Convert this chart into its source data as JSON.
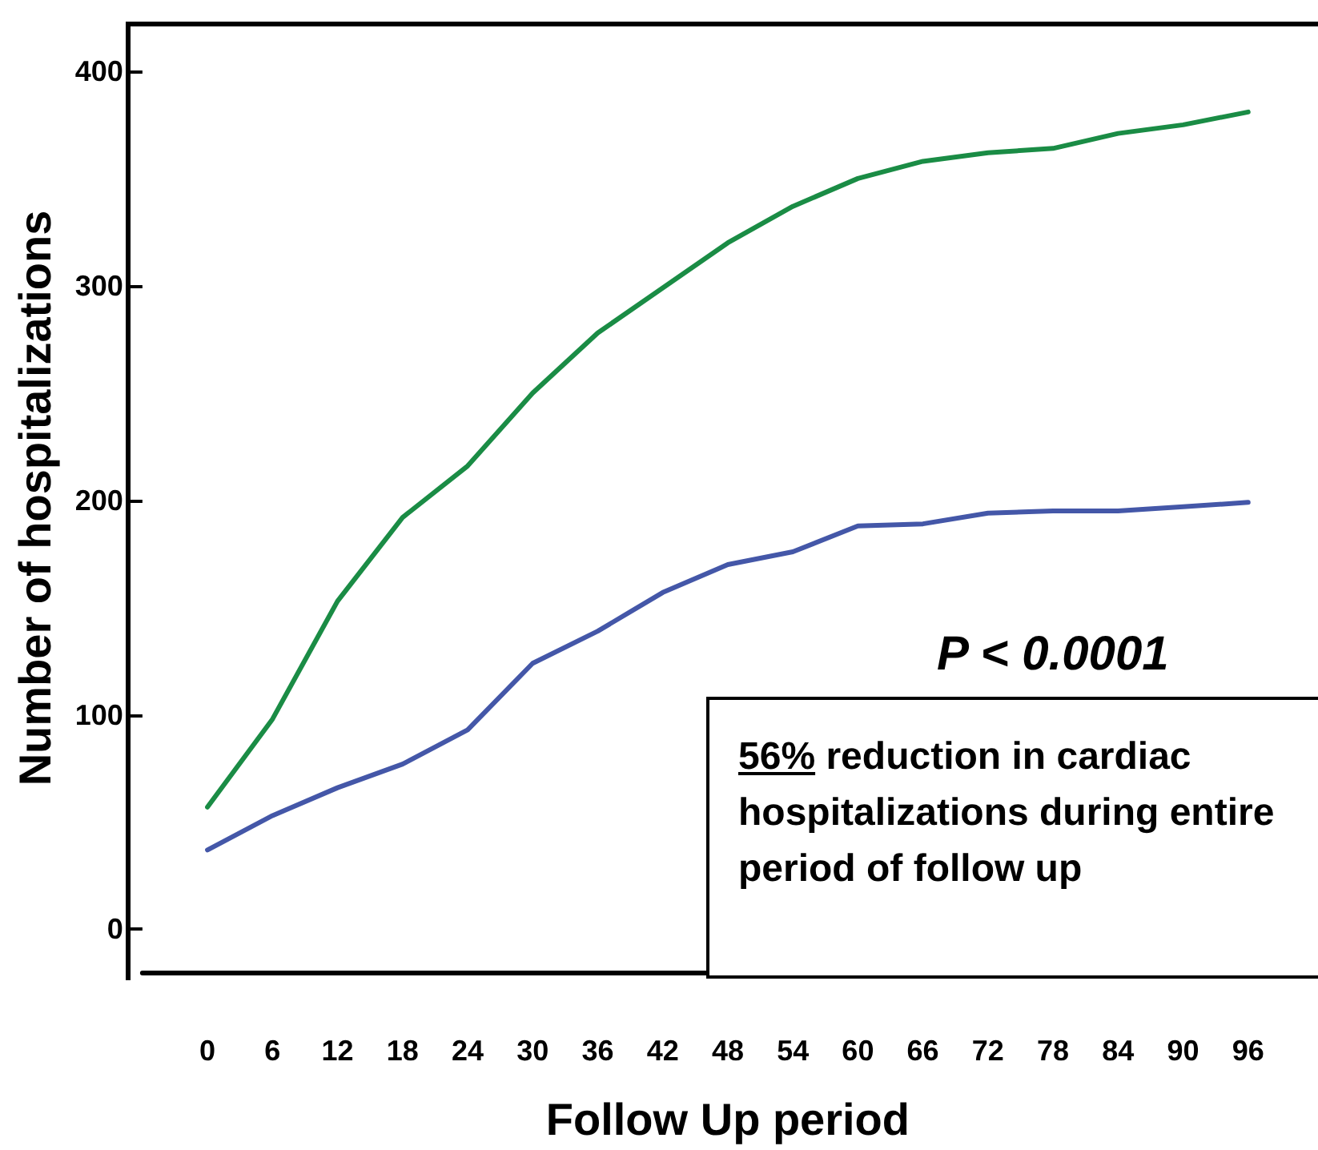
{
  "chart_data": {
    "type": "line",
    "xlabel": "Follow Up period",
    "ylabel": "Number of hospitalizations",
    "categories": [
      "0",
      "6",
      "12",
      "18",
      "24",
      "30",
      "36",
      "42",
      "48",
      "54",
      "60",
      "66",
      "72",
      "78",
      "84",
      "90",
      "96"
    ],
    "series": [
      {
        "color": "#1a8c45",
        "values": [
          57,
          98,
          153,
          192,
          216,
          250,
          278,
          299,
          320,
          337,
          350,
          358,
          362,
          364,
          371,
          375,
          381
        ]
      },
      {
        "color": "#4457a8",
        "values": [
          37,
          53,
          66,
          77,
          93,
          124,
          139,
          157,
          170,
          176,
          188,
          189,
          194,
          195,
          195,
          197,
          199
        ]
      }
    ],
    "ylim": [
      -20,
      422
    ],
    "yticks": [
      0,
      100,
      200,
      300,
      400
    ],
    "grid": false,
    "marker": "none",
    "line_style": "solid",
    "annotations": [
      "P < 0.0001",
      "56% reduction in cardiac hospitalizations during entire period of follow up"
    ]
  }
}
